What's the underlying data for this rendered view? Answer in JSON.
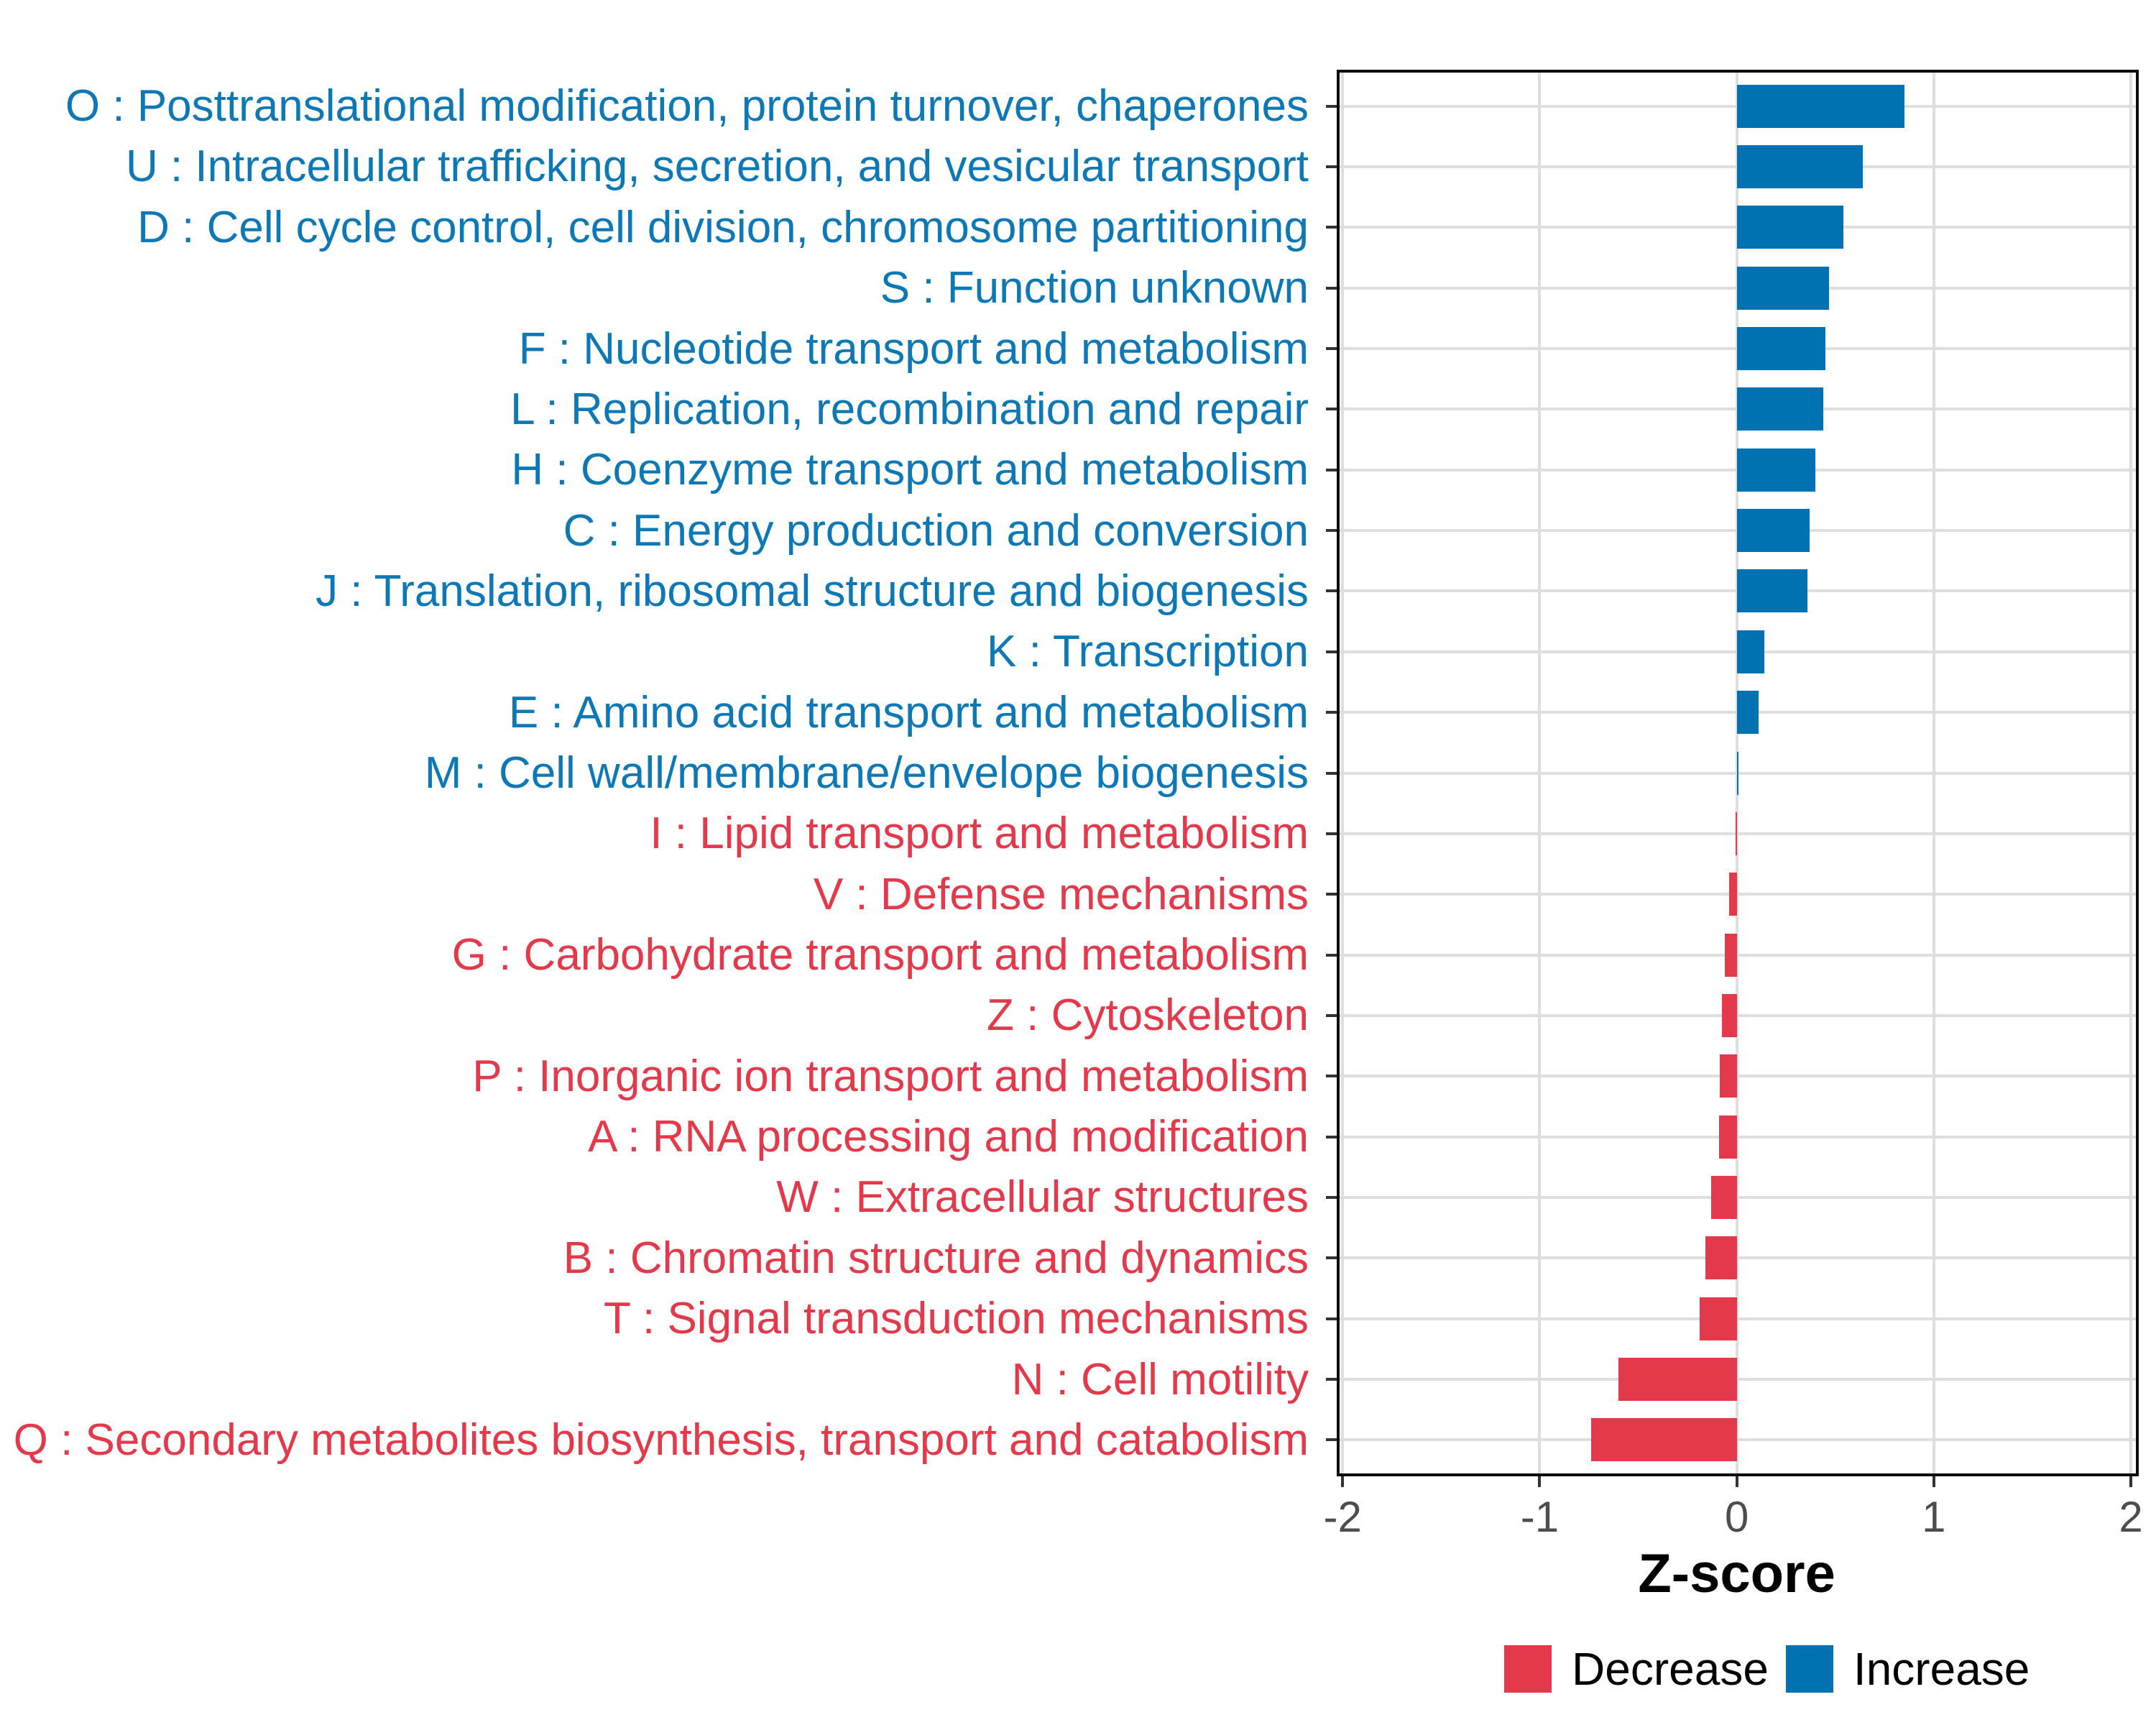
{
  "figure": {
    "background": "#ffffff"
  },
  "colors": {
    "increase": "#0072b2",
    "decrease": "#e4394a",
    "grid": "#dedede",
    "panel_border": "#0b0b0b",
    "tick": "#333333",
    "axis_tick_text": "#4d4d4d",
    "axis_title_text": "#000000"
  },
  "legend": {
    "items": [
      {
        "label": "Decrease",
        "direction": "decrease"
      },
      {
        "label": "Increase",
        "direction": "increase"
      }
    ]
  },
  "chart_data": {
    "type": "bar",
    "orientation": "horizontal",
    "title": "",
    "xlabel": "Z-score",
    "ylabel": "",
    "xlim": [
      -2.03,
      2.04
    ],
    "x_ticks": [
      -2,
      -1,
      0,
      1,
      2
    ],
    "x_tick_labels": [
      "-2",
      "-1",
      "0",
      "1",
      "2"
    ],
    "grid": "major-only",
    "legend_position": "bottom-right",
    "legend_entries": [
      "Decrease",
      "Increase"
    ],
    "categories": [
      {
        "code": "O",
        "label": "O : Posttranslational modification, protein turnover, chaperones",
        "value": 0.85,
        "direction": "increase"
      },
      {
        "code": "U",
        "label": "U : Intracellular trafficking, secretion, and vesicular transport",
        "value": 0.64,
        "direction": "increase"
      },
      {
        "code": "D",
        "label": "D : Cell cycle control, cell division, chromosome partitioning",
        "value": 0.54,
        "direction": "increase"
      },
      {
        "code": "S",
        "label": "S : Function unknown",
        "value": 0.47,
        "direction": "increase"
      },
      {
        "code": "F",
        "label": "F : Nucleotide transport and metabolism",
        "value": 0.45,
        "direction": "increase"
      },
      {
        "code": "L",
        "label": "L : Replication, recombination and repair",
        "value": 0.44,
        "direction": "increase"
      },
      {
        "code": "H",
        "label": "H : Coenzyme transport and metabolism",
        "value": 0.4,
        "direction": "increase"
      },
      {
        "code": "C",
        "label": "C : Energy production and conversion",
        "value": 0.37,
        "direction": "increase"
      },
      {
        "code": "J",
        "label": "J : Translation, ribosomal structure and biogenesis",
        "value": 0.36,
        "direction": "increase"
      },
      {
        "code": "K",
        "label": "K : Transcription",
        "value": 0.14,
        "direction": "increase"
      },
      {
        "code": "E",
        "label": "E : Amino acid transport and metabolism",
        "value": 0.11,
        "direction": "increase"
      },
      {
        "code": "M",
        "label": "M : Cell wall/membrane/envelope biogenesis",
        "value": 0.005,
        "direction": "increase"
      },
      {
        "code": "I",
        "label": "I : Lipid transport and metabolism",
        "value": -0.005,
        "direction": "decrease"
      },
      {
        "code": "V",
        "label": "V : Defense mechanisms",
        "value": -0.04,
        "direction": "decrease"
      },
      {
        "code": "G",
        "label": "G : Carbohydrate transport and metabolism",
        "value": -0.06,
        "direction": "decrease"
      },
      {
        "code": "Z",
        "label": "Z : Cytoskeleton",
        "value": -0.075,
        "direction": "decrease"
      },
      {
        "code": "P",
        "label": "P : Inorganic ion transport and metabolism",
        "value": -0.085,
        "direction": "decrease"
      },
      {
        "code": "A",
        "label": "A : RNA processing and modification",
        "value": -0.09,
        "direction": "decrease"
      },
      {
        "code": "W",
        "label": "W : Extracellular structures",
        "value": -0.13,
        "direction": "decrease"
      },
      {
        "code": "B",
        "label": "B : Chromatin structure and dynamics",
        "value": -0.16,
        "direction": "decrease"
      },
      {
        "code": "T",
        "label": "T : Signal transduction mechanisms",
        "value": -0.19,
        "direction": "decrease"
      },
      {
        "code": "N",
        "label": "N : Cell motility",
        "value": -0.6,
        "direction": "decrease"
      },
      {
        "code": "Q",
        "label": "Q : Secondary metabolites biosynthesis, transport and catabolism",
        "value": -0.74,
        "direction": "decrease"
      }
    ]
  }
}
